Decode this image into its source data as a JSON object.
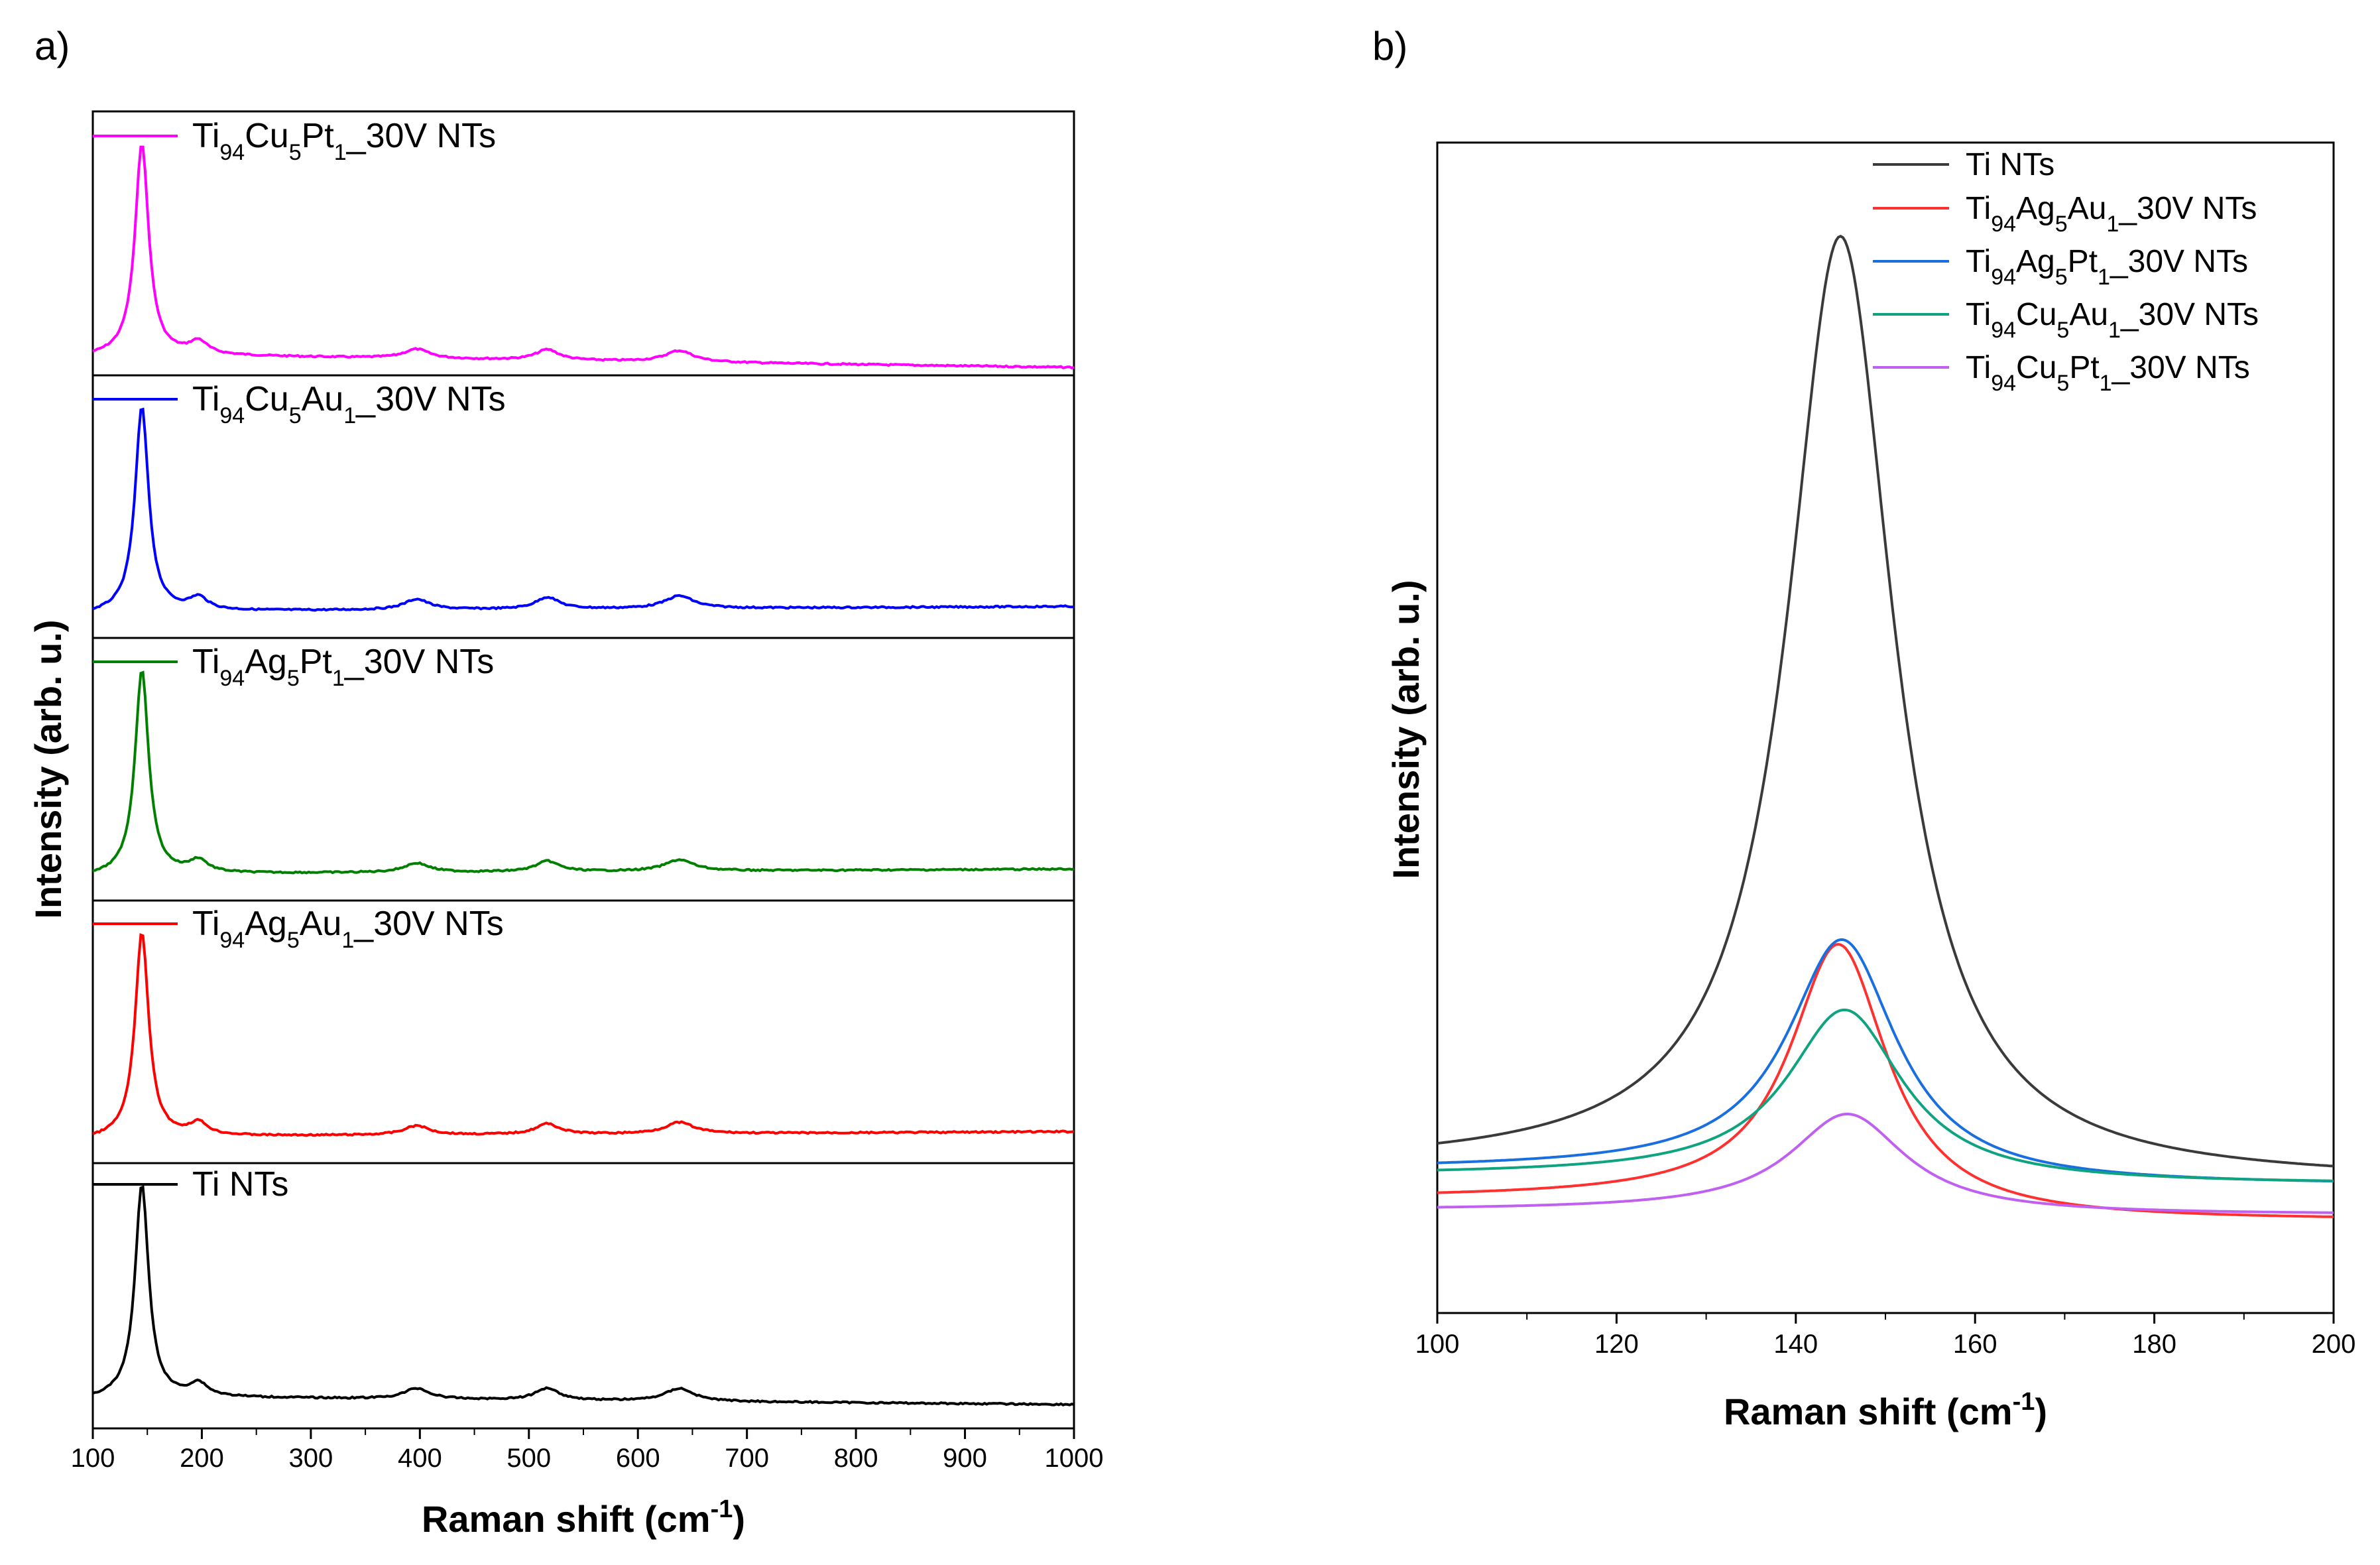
{
  "chart_data": [
    {
      "id": "a",
      "panel_label": "a)",
      "type": "line",
      "layout": "stacked",
      "xlabel": "Raman shift",
      "xlabel_unit": "(cm",
      "xlabel_unit_sup": "-1",
      "xlabel_unit_close": ")",
      "ylabel": "Intensity (arb. u.)",
      "xlim": [
        100,
        1000
      ],
      "xticks": [
        "100",
        "200",
        "300",
        "400",
        "500",
        "600",
        "700",
        "800",
        "900",
        "1000"
      ],
      "peaks_cm1": [
        145,
        197,
        397,
        517,
        638
      ],
      "series": [
        {
          "name_parts": [
            [
              "Ti",
              ""
            ],
            [
              "94",
              "sub"
            ],
            [
              "Cu",
              ""
            ],
            [
              "5",
              "sub"
            ],
            [
              "Pt",
              ""
            ],
            [
              "1",
              "sub"
            ],
            [
              "_30V  NTs",
              ""
            ]
          ],
          "color": "#ff00ff"
        },
        {
          "name_parts": [
            [
              "Ti",
              ""
            ],
            [
              "94",
              "sub"
            ],
            [
              "Cu",
              ""
            ],
            [
              "5",
              "sub"
            ],
            [
              "Au",
              ""
            ],
            [
              "1",
              "sub"
            ],
            [
              "_30V  NTs",
              ""
            ]
          ],
          "color": "#0000ff"
        },
        {
          "name_parts": [
            [
              "Ti",
              ""
            ],
            [
              "94",
              "sub"
            ],
            [
              "Ag",
              ""
            ],
            [
              "5",
              "sub"
            ],
            [
              "Pt",
              ""
            ],
            [
              "1",
              "sub"
            ],
            [
              "_30V  NTs",
              ""
            ]
          ],
          "color": "#008000"
        },
        {
          "name_parts": [
            [
              "Ti",
              ""
            ],
            [
              "94",
              "sub"
            ],
            [
              "Ag",
              ""
            ],
            [
              "5",
              "sub"
            ],
            [
              "Au",
              ""
            ],
            [
              "1",
              "sub"
            ],
            [
              "_30V NTs",
              ""
            ]
          ],
          "color": "#ff0000"
        },
        {
          "name_parts": [
            [
              "Ti NTs",
              ""
            ]
          ],
          "color": "#000000"
        }
      ]
    },
    {
      "id": "b",
      "panel_label": "b)",
      "type": "line",
      "xlabel": "Raman shift",
      "xlabel_unit": "(cm",
      "xlabel_unit_sup": "-1",
      "xlabel_unit_close": ")",
      "ylabel": "Intensity (arb. u.)",
      "xlim": [
        100,
        200
      ],
      "xticks": [
        "100",
        "120",
        "140",
        "160",
        "180",
        "200"
      ],
      "ylim": [
        0,
        100
      ],
      "series": [
        {
          "name_parts": [
            [
              "Ti NTs",
              ""
            ]
          ],
          "color": "#3a3a3a",
          "center": 145,
          "peak": 92,
          "base_left": 12.5,
          "base_right": 11.2,
          "width": 7.2
        },
        {
          "name_parts": [
            [
              "Ti",
              ""
            ],
            [
              "94",
              "sub"
            ],
            [
              "Ag",
              ""
            ],
            [
              "5",
              "sub"
            ],
            [
              "Au",
              ""
            ],
            [
              "1",
              "sub"
            ],
            [
              "_30V NTs",
              ""
            ]
          ],
          "color": "#ff3030",
          "center": 144.8,
          "peak": 31.5,
          "base_left": 9.8,
          "base_right": 7.9,
          "width": 6.6
        },
        {
          "name_parts": [
            [
              "Ti",
              ""
            ],
            [
              "94",
              "sub"
            ],
            [
              "Ag",
              ""
            ],
            [
              "5",
              "sub"
            ],
            [
              "Pt",
              ""
            ],
            [
              "1",
              "sub"
            ],
            [
              "_30V  NTs",
              ""
            ]
          ],
          "color": "#1a6fe0",
          "center": 145.2,
          "peak": 31.9,
          "base_left": 12.3,
          "base_right": 10.9,
          "width": 7.4
        },
        {
          "name_parts": [
            [
              "Ti",
              ""
            ],
            [
              "94",
              "sub"
            ],
            [
              "Cu",
              ""
            ],
            [
              "5",
              "sub"
            ],
            [
              "Au",
              ""
            ],
            [
              "1",
              "sub"
            ],
            [
              "_30V  NTs",
              ""
            ]
          ],
          "color": "#0fa37f",
          "center": 145.5,
          "peak": 25.9,
          "base_left": 11.8,
          "base_right": 11.0,
          "width": 7.8
        },
        {
          "name_parts": [
            [
              "Ti",
              ""
            ],
            [
              "94",
              "sub"
            ],
            [
              "Cu",
              ""
            ],
            [
              "5",
              "sub"
            ],
            [
              "Pt",
              ""
            ],
            [
              "1",
              "sub"
            ],
            [
              "_30V  NTs",
              ""
            ]
          ],
          "color": "#c060f0",
          "center": 145.8,
          "peak": 17.0,
          "base_left": 8.8,
          "base_right": 8.4,
          "width": 7.8
        }
      ]
    }
  ]
}
